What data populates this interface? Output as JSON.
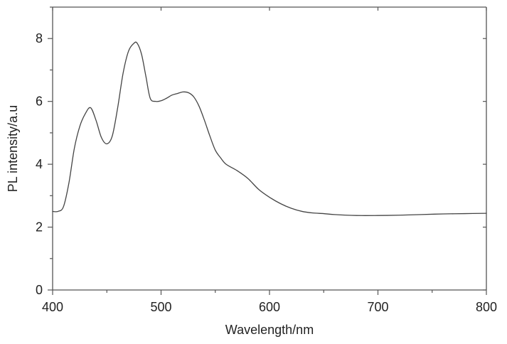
{
  "chart_data": {
    "type": "line",
    "title": "",
    "xlabel": "Wavelength/nm",
    "ylabel": "PL intensity/a.u",
    "xlim": [
      400,
      800
    ],
    "ylim": [
      0,
      9
    ],
    "x_ticks": [
      400,
      500,
      600,
      700,
      800
    ],
    "y_ticks": [
      0,
      2,
      4,
      6,
      8
    ],
    "x_tick_labels": [
      "400",
      "500",
      "600",
      "700",
      "800"
    ],
    "y_tick_labels": [
      "0",
      "2",
      "4",
      "6",
      "8"
    ],
    "grid": false,
    "legend": "none",
    "line_color": "#444444",
    "series": [
      {
        "x": [
          400,
          405,
          410,
          415,
          420,
          425,
          430,
          435,
          440,
          445,
          450,
          455,
          460,
          465,
          470,
          475,
          478,
          482,
          486,
          490,
          495,
          500,
          505,
          510,
          515,
          520,
          525,
          530,
          535,
          540,
          545,
          550,
          555,
          560,
          570,
          580,
          590,
          600,
          610,
          620,
          630,
          640,
          650,
          660,
          680,
          700,
          720,
          740,
          760,
          780,
          800
        ],
        "y": [
          2.5,
          2.5,
          2.65,
          3.4,
          4.5,
          5.2,
          5.6,
          5.8,
          5.4,
          4.85,
          4.65,
          4.9,
          5.8,
          6.9,
          7.6,
          7.85,
          7.85,
          7.5,
          6.8,
          6.1,
          6.0,
          6.02,
          6.1,
          6.2,
          6.25,
          6.3,
          6.28,
          6.15,
          5.85,
          5.4,
          4.9,
          4.45,
          4.2,
          4.0,
          3.8,
          3.55,
          3.2,
          2.95,
          2.75,
          2.6,
          2.5,
          2.45,
          2.43,
          2.4,
          2.37,
          2.37,
          2.38,
          2.4,
          2.42,
          2.43,
          2.44
        ]
      }
    ]
  }
}
